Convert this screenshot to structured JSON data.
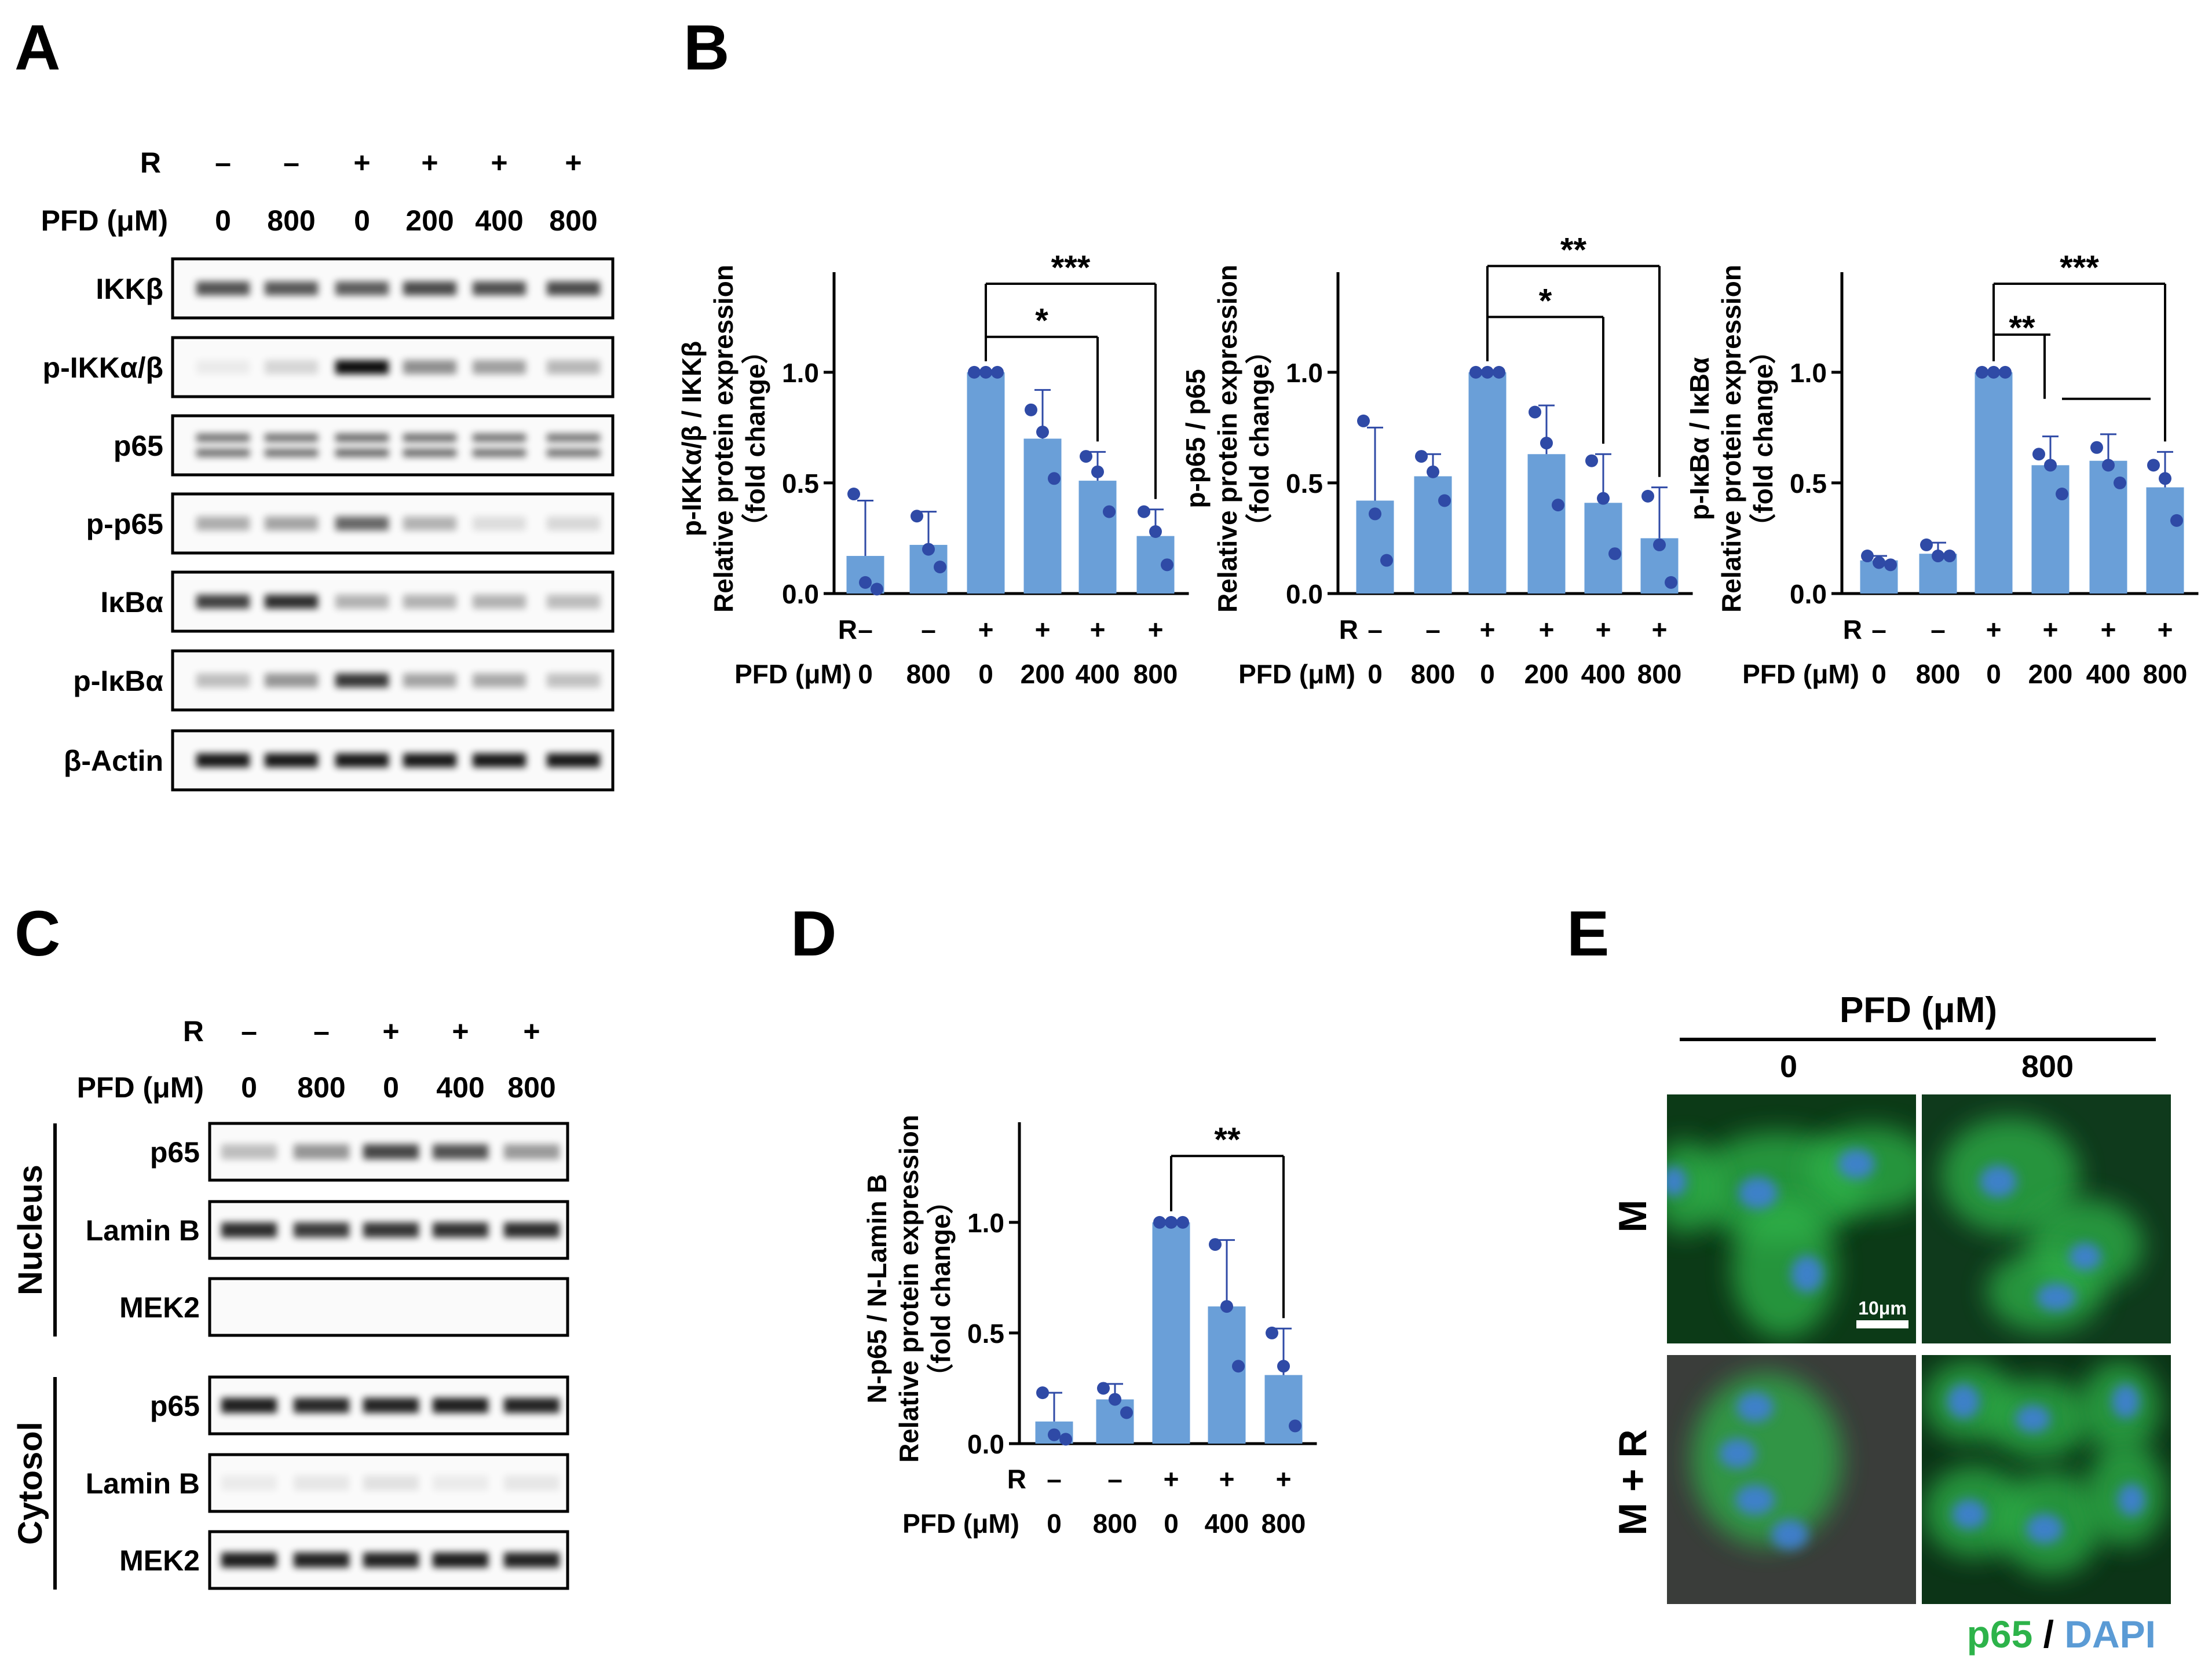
{
  "panels": {
    "A": "A",
    "B": "B",
    "C": "C",
    "D": "D",
    "E": "E"
  },
  "blotA": {
    "r_label": "R",
    "pfd_label": "PFD (μM)",
    "r_values": [
      "–",
      "–",
      "+",
      "+",
      "+",
      "+"
    ],
    "pfd_values": [
      "0",
      "800",
      "0",
      "200",
      "400",
      "800"
    ],
    "rows": [
      {
        "label": "IKKβ",
        "intensity": [
          0.7,
          0.68,
          0.66,
          0.74,
          0.72,
          0.74
        ]
      },
      {
        "label": "p-IKKα/β",
        "intensity": [
          0.06,
          0.15,
          1.0,
          0.45,
          0.38,
          0.28
        ]
      },
      {
        "label": "p65",
        "intensity": [
          0.62,
          0.62,
          0.66,
          0.64,
          0.62,
          0.6
        ]
      },
      {
        "label": "p-p65",
        "intensity": [
          0.32,
          0.36,
          0.62,
          0.3,
          0.12,
          0.14
        ]
      },
      {
        "label": "IκBα",
        "intensity": [
          0.78,
          0.86,
          0.3,
          0.3,
          0.3,
          0.26
        ]
      },
      {
        "label": "p-IκBα",
        "intensity": [
          0.25,
          0.42,
          0.82,
          0.36,
          0.34,
          0.24
        ]
      },
      {
        "label": "β-Actin",
        "intensity": [
          0.95,
          0.95,
          0.95,
          0.95,
          0.95,
          0.95
        ]
      }
    ]
  },
  "chart_data": [
    {
      "type": "bar",
      "panel": "B",
      "ylabel": [
        "p-IKKα/β / IKKβ",
        "Relative protein expression",
        "（fold change）"
      ],
      "yticks": [
        "0.0",
        "0.5",
        "1.0"
      ],
      "ylim": [
        0,
        1.4
      ],
      "r_label": "R",
      "pfd_label": "PFD (μM)",
      "r_values": [
        "–",
        "–",
        "+",
        "+",
        "+",
        "+"
      ],
      "categories": [
        "0",
        "800",
        "0",
        "200",
        "400",
        "800"
      ],
      "values": [
        0.17,
        0.22,
        1.0,
        0.7,
        0.51,
        0.26
      ],
      "errors": [
        0.25,
        0.15,
        0.0,
        0.22,
        0.13,
        0.12
      ],
      "points": [
        [
          0.45,
          0.05,
          0.02
        ],
        [
          0.35,
          0.2,
          0.12
        ],
        [
          1.0,
          1.0,
          1.0
        ],
        [
          0.83,
          0.73,
          0.52
        ],
        [
          0.62,
          0.55,
          0.37
        ],
        [
          0.37,
          0.28,
          0.13
        ]
      ],
      "sig": [
        {
          "from": 2,
          "to": 4,
          "level": 1.16,
          "label": "*"
        },
        {
          "from": 2,
          "to": 5,
          "level": 1.4,
          "label": "***"
        }
      ]
    },
    {
      "type": "bar",
      "panel": "B",
      "ylabel": [
        "p-p65 / p65",
        "Relative protein expression",
        "（fold change）"
      ],
      "yticks": [
        "0.0",
        "0.5",
        "1.0"
      ],
      "ylim": [
        0,
        1.4
      ],
      "r_label": "R",
      "pfd_label": "PFD (μM)",
      "r_values": [
        "–",
        "–",
        "+",
        "+",
        "+",
        "+"
      ],
      "categories": [
        "0",
        "800",
        "0",
        "200",
        "400",
        "800"
      ],
      "values": [
        0.42,
        0.53,
        1.0,
        0.63,
        0.41,
        0.25
      ],
      "errors": [
        0.33,
        0.1,
        0.0,
        0.22,
        0.22,
        0.23
      ],
      "points": [
        [
          0.78,
          0.36,
          0.15
        ],
        [
          0.62,
          0.55,
          0.42
        ],
        [
          1.0,
          1.0,
          1.0
        ],
        [
          0.82,
          0.68,
          0.4
        ],
        [
          0.6,
          0.43,
          0.18
        ],
        [
          0.44,
          0.22,
          0.05
        ]
      ],
      "sig": [
        {
          "from": 2,
          "to": 4,
          "level": 1.25,
          "label": "*"
        },
        {
          "from": 2,
          "to": 5,
          "level": 1.48,
          "label": "**"
        }
      ]
    },
    {
      "type": "bar",
      "panel": "B",
      "ylabel": [
        "p-IκBα / IκBα",
        "Relative protein expression",
        "（fold change）"
      ],
      "yticks": [
        "0.0",
        "0.5",
        "1.0"
      ],
      "ylim": [
        0,
        1.4
      ],
      "r_label": "R",
      "pfd_label": "PFD (μM)",
      "r_values": [
        "–",
        "–",
        "+",
        "+",
        "+",
        "+"
      ],
      "categories": [
        "0",
        "800",
        "0",
        "200",
        "400",
        "800"
      ],
      "values": [
        0.15,
        0.18,
        1.0,
        0.58,
        0.6,
        0.48
      ],
      "errors": [
        0.02,
        0.05,
        0.0,
        0.13,
        0.12,
        0.16
      ],
      "points": [
        [
          0.17,
          0.14,
          0.13
        ],
        [
          0.22,
          0.17,
          0.17
        ],
        [
          1.0,
          1.0,
          1.0
        ],
        [
          0.63,
          0.58,
          0.45
        ],
        [
          0.66,
          0.58,
          0.5
        ],
        [
          0.58,
          0.52,
          0.33
        ]
      ],
      "sig": [
        {
          "from": 2,
          "to": 3,
          "level": 1.17,
          "label": "**",
          "group_to": 5
        },
        {
          "from": 2,
          "to": 5,
          "level": 1.4,
          "label": "***"
        }
      ]
    },
    {
      "type": "bar",
      "panel": "D",
      "ylabel": [
        "N-p65 / N-Lamin B",
        "Relative protein expression",
        "（fold change）"
      ],
      "yticks": [
        "0.0",
        "0.5",
        "1.0"
      ],
      "ylim": [
        0,
        1.4
      ],
      "r_label": "R",
      "pfd_label": "PFD (μM)",
      "r_values": [
        "–",
        "–",
        "+",
        "+",
        "+"
      ],
      "categories": [
        "0",
        "800",
        "0",
        "400",
        "800"
      ],
      "values": [
        0.1,
        0.2,
        1.0,
        0.62,
        0.31
      ],
      "errors": [
        0.13,
        0.07,
        0.0,
        0.3,
        0.21
      ],
      "points": [
        [
          0.23,
          0.04,
          0.02
        ],
        [
          0.25,
          0.2,
          0.14
        ],
        [
          1.0,
          1.0,
          1.0
        ],
        [
          0.9,
          0.62,
          0.35
        ],
        [
          0.5,
          0.35,
          0.08
        ]
      ],
      "sig": [
        {
          "from": 2,
          "to": 4,
          "level": 1.3,
          "label": "**"
        }
      ]
    }
  ],
  "blotC": {
    "r_label": "R",
    "pfd_label": "PFD (μM)",
    "r_values": [
      "–",
      "–",
      "+",
      "+",
      "+"
    ],
    "pfd_values": [
      "0",
      "800",
      "0",
      "400",
      "800"
    ],
    "groups": [
      {
        "label": "Nucleus",
        "rows": [
          {
            "label": "p65",
            "intensity": [
              0.25,
              0.42,
              0.75,
              0.7,
              0.4
            ]
          },
          {
            "label": "Lamin B",
            "intensity": [
              0.86,
              0.8,
              0.82,
              0.84,
              0.86
            ]
          },
          {
            "label": "MEK2",
            "intensity": [
              0.0,
              0.0,
              0.0,
              0.0,
              0.0
            ]
          }
        ]
      },
      {
        "label": "Cytosol",
        "rows": [
          {
            "label": "p65",
            "intensity": [
              0.92,
              0.88,
              0.9,
              0.92,
              0.9
            ]
          },
          {
            "label": "Lamin B",
            "intensity": [
              0.06,
              0.08,
              0.1,
              0.06,
              0.08
            ]
          },
          {
            "label": "MEK2",
            "intensity": [
              0.92,
              0.9,
              0.9,
              0.92,
              0.9
            ]
          }
        ]
      }
    ]
  },
  "panelE": {
    "header": "PFD (μM)",
    "columns": [
      "0",
      "800"
    ],
    "rows": [
      "M",
      "M + R"
    ],
    "scale_bar": "10μm",
    "legend_p65": "p65",
    "legend_sep": " / ",
    "legend_dapi": "DAPI",
    "colors": {
      "p65": "#2db34a",
      "dapi": "#5b9bd5",
      "bar": "#6a9fd8",
      "dot": "#2f4aa6"
    }
  }
}
